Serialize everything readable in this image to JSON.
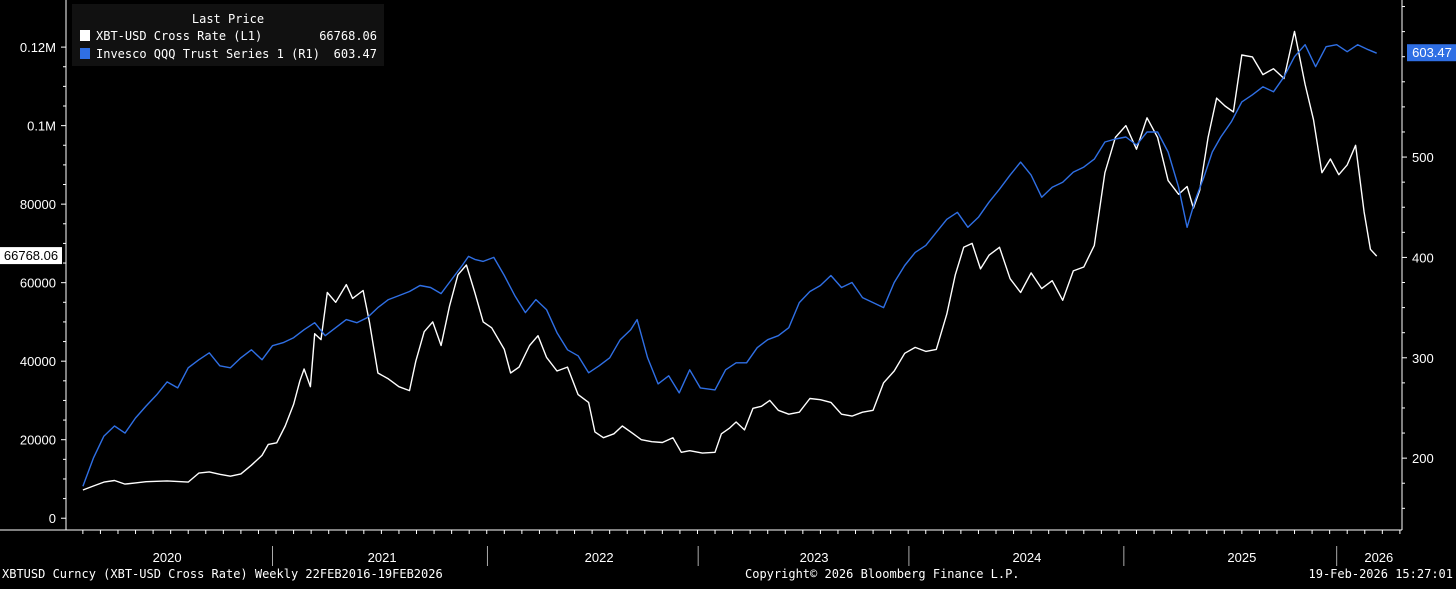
{
  "chart_data": {
    "type": "line",
    "legend": {
      "title": "Last Price",
      "placement": "top-left"
    },
    "series": [
      {
        "name": "XBT-USD Cross Rate (L1)",
        "axis": "left",
        "color": "#ffffff",
        "last_value": "66768.06",
        "points": [
          [
            2020.0,
            7200
          ],
          [
            2020.05,
            8200
          ],
          [
            2020.1,
            9200
          ],
          [
            2020.15,
            9600
          ],
          [
            2020.2,
            8700
          ],
          [
            2020.25,
            9000
          ],
          [
            2020.3,
            9300
          ],
          [
            2020.4,
            9500
          ],
          [
            2020.5,
            9200
          ],
          [
            2020.55,
            11500
          ],
          [
            2020.6,
            11800
          ],
          [
            2020.65,
            11200
          ],
          [
            2020.7,
            10700
          ],
          [
            2020.75,
            11300
          ],
          [
            2020.8,
            13500
          ],
          [
            2020.85,
            16000
          ],
          [
            2020.88,
            18800
          ],
          [
            2020.92,
            19200
          ],
          [
            2020.96,
            23500
          ],
          [
            2021.0,
            29000
          ],
          [
            2021.03,
            35000
          ],
          [
            2021.05,
            38000
          ],
          [
            2021.08,
            33500
          ],
          [
            2021.1,
            47000
          ],
          [
            2021.13,
            45500
          ],
          [
            2021.16,
            57500
          ],
          [
            2021.2,
            55000
          ],
          [
            2021.25,
            59500
          ],
          [
            2021.28,
            56000
          ],
          [
            2021.33,
            58000
          ],
          [
            2021.36,
            50000
          ],
          [
            2021.4,
            37000
          ],
          [
            2021.45,
            35500
          ],
          [
            2021.5,
            33500
          ],
          [
            2021.55,
            32500
          ],
          [
            2021.58,
            40000
          ],
          [
            2021.62,
            47500
          ],
          [
            2021.66,
            50000
          ],
          [
            2021.7,
            44000
          ],
          [
            2021.74,
            54000
          ],
          [
            2021.78,
            62000
          ],
          [
            2021.82,
            64500
          ],
          [
            2021.86,
            57500
          ],
          [
            2021.9,
            50000
          ],
          [
            2021.94,
            48500
          ],
          [
            2022.0,
            43000
          ],
          [
            2022.03,
            37000
          ],
          [
            2022.07,
            38500
          ],
          [
            2022.12,
            44000
          ],
          [
            2022.16,
            46500
          ],
          [
            2022.2,
            41000
          ],
          [
            2022.25,
            37500
          ],
          [
            2022.3,
            38500
          ],
          [
            2022.35,
            31500
          ],
          [
            2022.4,
            29500
          ],
          [
            2022.43,
            22000
          ],
          [
            2022.47,
            20500
          ],
          [
            2022.52,
            21500
          ],
          [
            2022.56,
            23500
          ],
          [
            2022.6,
            22000
          ],
          [
            2022.65,
            20000
          ],
          [
            2022.7,
            19500
          ],
          [
            2022.75,
            19300
          ],
          [
            2022.8,
            20500
          ],
          [
            2022.84,
            16800
          ],
          [
            2022.88,
            17200
          ],
          [
            2022.94,
            16600
          ],
          [
            2023.0,
            16800
          ],
          [
            2023.03,
            21500
          ],
          [
            2023.07,
            23000
          ],
          [
            2023.1,
            24500
          ],
          [
            2023.14,
            22500
          ],
          [
            2023.18,
            28000
          ],
          [
            2023.22,
            28500
          ],
          [
            2023.26,
            30000
          ],
          [
            2023.3,
            27500
          ],
          [
            2023.35,
            26500
          ],
          [
            2023.4,
            27000
          ],
          [
            2023.45,
            30500
          ],
          [
            2023.5,
            30200
          ],
          [
            2023.55,
            29500
          ],
          [
            2023.6,
            26500
          ],
          [
            2023.65,
            26000
          ],
          [
            2023.7,
            27000
          ],
          [
            2023.75,
            27500
          ],
          [
            2023.8,
            34500
          ],
          [
            2023.85,
            37500
          ],
          [
            2023.9,
            42000
          ],
          [
            2023.95,
            43500
          ],
          [
            2024.0,
            42500
          ],
          [
            2024.05,
            43000
          ],
          [
            2024.1,
            52000
          ],
          [
            2024.14,
            62000
          ],
          [
            2024.18,
            69000
          ],
          [
            2024.22,
            70000
          ],
          [
            2024.26,
            63500
          ],
          [
            2024.3,
            67000
          ],
          [
            2024.35,
            69000
          ],
          [
            2024.4,
            61000
          ],
          [
            2024.45,
            57500
          ],
          [
            2024.5,
            62500
          ],
          [
            2024.55,
            58500
          ],
          [
            2024.6,
            60500
          ],
          [
            2024.65,
            55500
          ],
          [
            2024.7,
            63000
          ],
          [
            2024.75,
            64000
          ],
          [
            2024.8,
            69500
          ],
          [
            2024.85,
            88000
          ],
          [
            2024.9,
            97000
          ],
          [
            2024.95,
            100000
          ],
          [
            2025.0,
            94000
          ],
          [
            2025.05,
            102000
          ],
          [
            2025.1,
            97000
          ],
          [
            2025.15,
            86000
          ],
          [
            2025.2,
            82500
          ],
          [
            2025.24,
            84500
          ],
          [
            2025.27,
            79000
          ],
          [
            2025.3,
            83500
          ],
          [
            2025.34,
            97000
          ],
          [
            2025.38,
            107000
          ],
          [
            2025.42,
            105000
          ],
          [
            2025.46,
            103500
          ],
          [
            2025.5,
            118000
          ],
          [
            2025.55,
            117500
          ],
          [
            2025.6,
            113000
          ],
          [
            2025.65,
            114500
          ],
          [
            2025.7,
            112000
          ],
          [
            2025.75,
            124000
          ],
          [
            2025.8,
            110500
          ],
          [
            2025.84,
            101500
          ],
          [
            2025.88,
            88000
          ],
          [
            2025.92,
            91500
          ],
          [
            2025.96,
            87500
          ],
          [
            2026.0,
            90000
          ],
          [
            2026.04,
            95000
          ],
          [
            2026.08,
            78000
          ],
          [
            2026.11,
            68500
          ],
          [
            2026.14,
            66768.06
          ]
        ]
      },
      {
        "name": "Invesco QQQ Trust Series 1 (R1)",
        "axis": "right",
        "color": "#2f6fe4",
        "last_value": "603.47",
        "points": [
          [
            2020.0,
            172
          ],
          [
            2020.05,
            200
          ],
          [
            2020.1,
            222
          ],
          [
            2020.15,
            232
          ],
          [
            2020.2,
            225
          ],
          [
            2020.25,
            240
          ],
          [
            2020.3,
            252
          ],
          [
            2020.35,
            263
          ],
          [
            2020.4,
            276
          ],
          [
            2020.45,
            270
          ],
          [
            2020.5,
            290
          ],
          [
            2020.55,
            298
          ],
          [
            2020.6,
            305
          ],
          [
            2020.65,
            292
          ],
          [
            2020.7,
            290
          ],
          [
            2020.75,
            300
          ],
          [
            2020.8,
            308
          ],
          [
            2020.85,
            298
          ],
          [
            2020.9,
            312
          ],
          [
            2020.95,
            315
          ],
          [
            2021.0,
            320
          ],
          [
            2021.05,
            328
          ],
          [
            2021.1,
            335
          ],
          [
            2021.15,
            322
          ],
          [
            2021.2,
            330
          ],
          [
            2021.25,
            338
          ],
          [
            2021.3,
            335
          ],
          [
            2021.35,
            340
          ],
          [
            2021.4,
            350
          ],
          [
            2021.45,
            358
          ],
          [
            2021.5,
            362
          ],
          [
            2021.55,
            366
          ],
          [
            2021.6,
            372
          ],
          [
            2021.65,
            370
          ],
          [
            2021.7,
            364
          ],
          [
            2021.75,
            378
          ],
          [
            2021.8,
            392
          ],
          [
            2021.83,
            401
          ],
          [
            2021.86,
            398
          ],
          [
            2021.9,
            396
          ],
          [
            2021.95,
            400
          ],
          [
            2022.0,
            382
          ],
          [
            2022.05,
            362
          ],
          [
            2022.1,
            345
          ],
          [
            2022.15,
            358
          ],
          [
            2022.2,
            348
          ],
          [
            2022.25,
            325
          ],
          [
            2022.3,
            308
          ],
          [
            2022.35,
            302
          ],
          [
            2022.4,
            285
          ],
          [
            2022.45,
            292
          ],
          [
            2022.5,
            300
          ],
          [
            2022.55,
            318
          ],
          [
            2022.6,
            328
          ],
          [
            2022.63,
            338
          ],
          [
            2022.68,
            300
          ],
          [
            2022.73,
            274
          ],
          [
            2022.78,
            282
          ],
          [
            2022.83,
            265
          ],
          [
            2022.88,
            288
          ],
          [
            2022.93,
            270
          ],
          [
            2023.0,
            268
          ],
          [
            2023.05,
            288
          ],
          [
            2023.1,
            295
          ],
          [
            2023.15,
            295
          ],
          [
            2023.2,
            310
          ],
          [
            2023.25,
            318
          ],
          [
            2023.3,
            322
          ],
          [
            2023.35,
            330
          ],
          [
            2023.4,
            355
          ],
          [
            2023.45,
            366
          ],
          [
            2023.5,
            372
          ],
          [
            2023.55,
            382
          ],
          [
            2023.6,
            370
          ],
          [
            2023.65,
            375
          ],
          [
            2023.7,
            360
          ],
          [
            2023.75,
            355
          ],
          [
            2023.8,
            350
          ],
          [
            2023.85,
            375
          ],
          [
            2023.9,
            392
          ],
          [
            2023.95,
            405
          ],
          [
            2024.0,
            412
          ],
          [
            2024.05,
            425
          ],
          [
            2024.1,
            438
          ],
          [
            2024.15,
            445
          ],
          [
            2024.2,
            430
          ],
          [
            2024.25,
            440
          ],
          [
            2024.3,
            455
          ],
          [
            2024.35,
            468
          ],
          [
            2024.4,
            482
          ],
          [
            2024.45,
            495
          ],
          [
            2024.5,
            482
          ],
          [
            2024.55,
            460
          ],
          [
            2024.6,
            470
          ],
          [
            2024.65,
            475
          ],
          [
            2024.7,
            485
          ],
          [
            2024.75,
            490
          ],
          [
            2024.8,
            498
          ],
          [
            2024.85,
            515
          ],
          [
            2024.9,
            518
          ],
          [
            2024.95,
            520
          ],
          [
            2025.0,
            512
          ],
          [
            2025.05,
            525
          ],
          [
            2025.1,
            525
          ],
          [
            2025.15,
            505
          ],
          [
            2025.2,
            470
          ],
          [
            2025.24,
            430
          ],
          [
            2025.28,
            458
          ],
          [
            2025.32,
            480
          ],
          [
            2025.36,
            505
          ],
          [
            2025.4,
            520
          ],
          [
            2025.45,
            535
          ],
          [
            2025.5,
            555
          ],
          [
            2025.55,
            562
          ],
          [
            2025.6,
            570
          ],
          [
            2025.65,
            565
          ],
          [
            2025.7,
            580
          ],
          [
            2025.75,
            600
          ],
          [
            2025.8,
            612
          ],
          [
            2025.85,
            590
          ],
          [
            2025.9,
            610
          ],
          [
            2025.95,
            612
          ],
          [
            2026.0,
            605
          ],
          [
            2026.05,
            612
          ],
          [
            2026.1,
            607
          ],
          [
            2026.14,
            603.47
          ]
        ]
      }
    ],
    "left_axis": {
      "ylim": [
        -3000,
        132000
      ],
      "ticks": [
        0,
        20000,
        40000,
        60000,
        80000,
        100000,
        120000
      ],
      "tick_labels": [
        "0",
        "20000",
        "40000",
        "60000",
        "80000",
        "0.1M",
        "0.12M"
      ]
    },
    "right_axis": {
      "ylim": [
        128.4,
        656.5
      ],
      "ticks": [
        200,
        300,
        400,
        500
      ],
      "tick_labels": [
        "200",
        "300",
        "400",
        "500"
      ]
    },
    "x_axis": {
      "xlim": [
        2019.92,
        2026.26
      ],
      "year_labels": [
        "2020",
        "2021",
        "2022",
        "2023",
        "2024",
        "2025",
        "2026"
      ],
      "year_label_positions": [
        2020.4,
        2021.42,
        2022.45,
        2023.47,
        2024.48,
        2025.5,
        2026.15
      ],
      "separators": [
        2020.9,
        2021.92,
        2022.92,
        2023.92,
        2024.94,
        2025.95
      ]
    },
    "grid": false
  },
  "footer": {
    "left": "XBTUSD Curncy (XBT-USD Cross Rate) Weekly 22FEB2016-19FEB2026",
    "center": "Copyright© 2026 Bloomberg Finance L.P.",
    "right": "19-Feb-2026 15:27:01"
  }
}
